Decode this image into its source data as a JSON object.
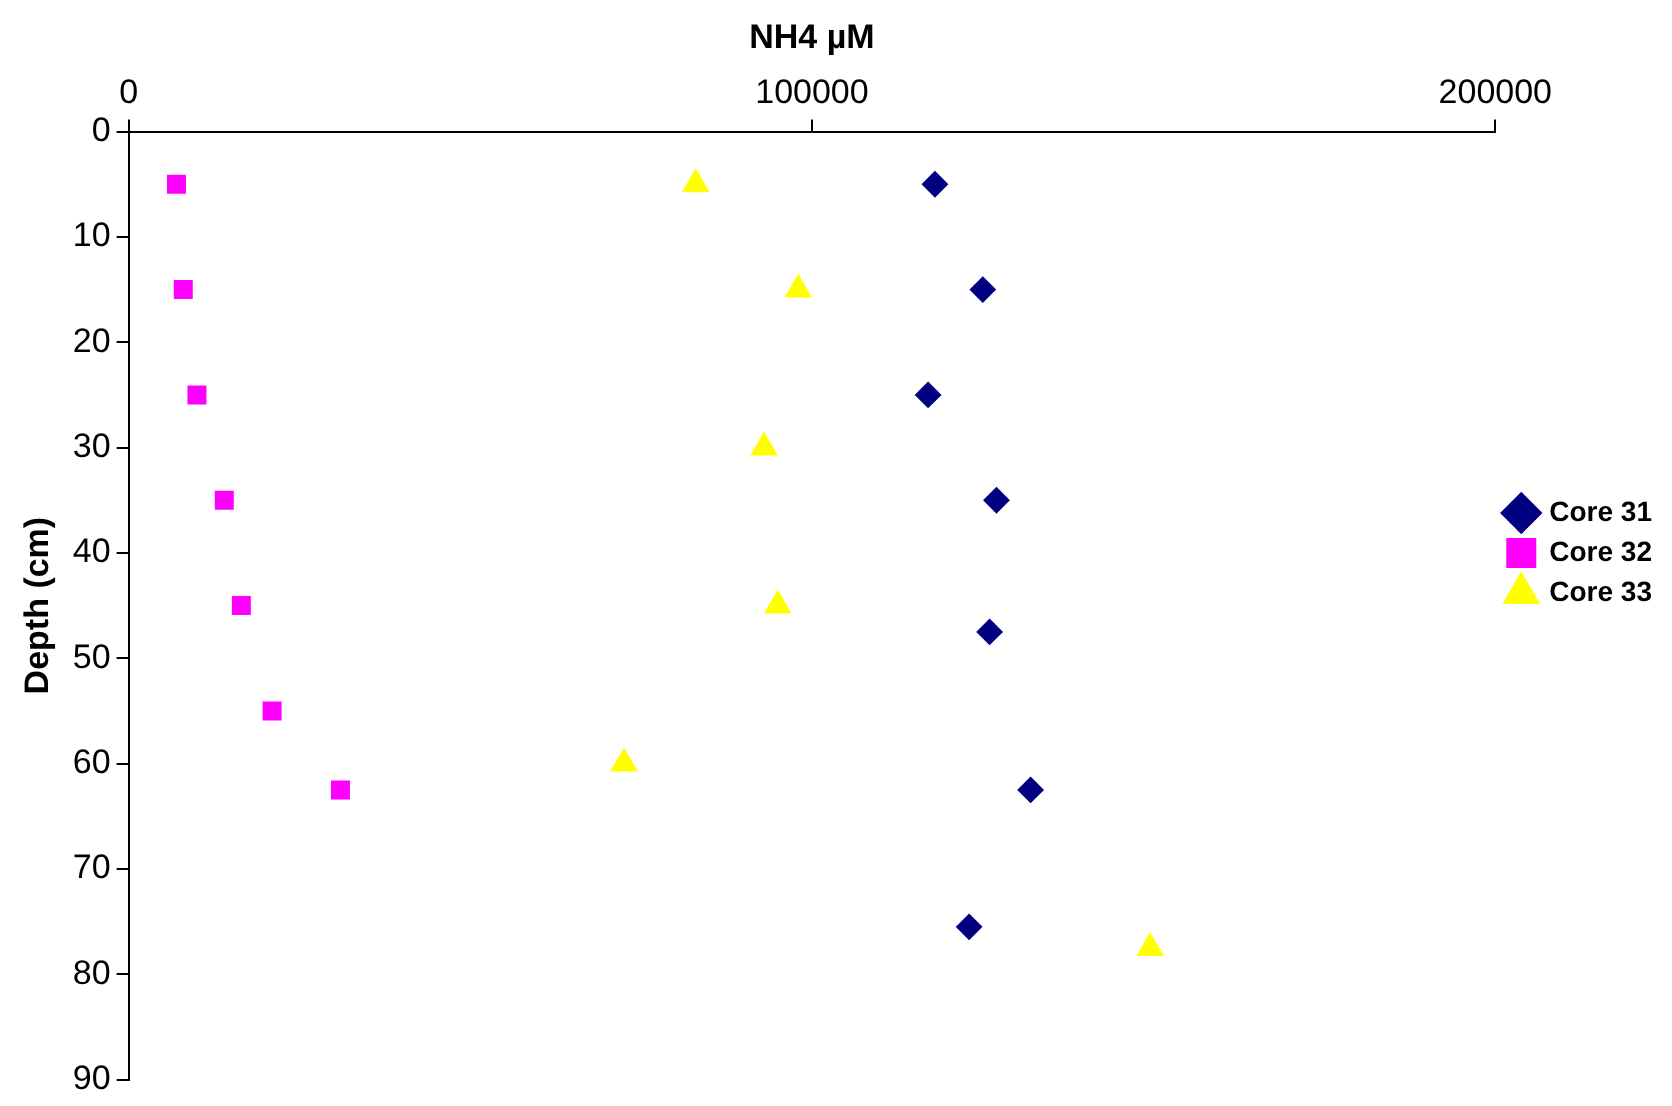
{
  "chart_data": {
    "type": "scatter",
    "xlabel": "NH4 µM",
    "ylabel": "Depth (cm)",
    "xlim": [
      0,
      200000
    ],
    "xticks": [
      0,
      100000,
      200000
    ],
    "ylim": [
      90,
      0
    ],
    "yticks": [
      0,
      10,
      20,
      30,
      40,
      50,
      60,
      70,
      80,
      90
    ],
    "grid": false,
    "legend": "right",
    "series": [
      {
        "name": "Core 31",
        "color": "#000080",
        "marker": "diamond",
        "x": [
          118000,
          125000,
          117000,
          127000,
          126000,
          132000,
          123000
        ],
        "values": [
          5,
          15,
          25,
          35,
          47.5,
          62.5,
          75.5
        ]
      },
      {
        "name": "Core 32",
        "color": "#ff00ff",
        "marker": "square",
        "x": [
          7000,
          8000,
          10000,
          14000,
          16500,
          21000,
          31000
        ],
        "values": [
          5,
          15,
          25,
          35,
          45,
          55,
          62.5
        ]
      },
      {
        "name": "Core 33",
        "color": "#ffff00",
        "marker": "triangle",
        "x": [
          83000,
          98000,
          93000,
          95000,
          72500,
          149500
        ],
        "values": [
          5,
          15,
          30,
          45,
          60,
          77.5
        ]
      }
    ]
  }
}
